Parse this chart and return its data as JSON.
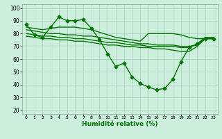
{
  "title": "",
  "xlabel": "Humidité relative (%)",
  "ylabel": "",
  "background_color": "#cceedd",
  "grid_color": "#aaccbb",
  "line_color": "#007700",
  "xlim": [
    -0.5,
    23.5
  ],
  "ylim": [
    17,
    103
  ],
  "yticks": [
    20,
    30,
    40,
    50,
    60,
    70,
    80,
    90,
    100
  ],
  "xticks": [
    0,
    1,
    2,
    3,
    4,
    5,
    6,
    7,
    8,
    9,
    10,
    11,
    12,
    13,
    14,
    15,
    16,
    17,
    18,
    19,
    20,
    21,
    22,
    23
  ],
  "series": [
    {
      "x": [
        0,
        1,
        2,
        3,
        4,
        5,
        6,
        7,
        8,
        9,
        10,
        11,
        12,
        13,
        14,
        15,
        16,
        17,
        18,
        19,
        20,
        21,
        22,
        23
      ],
      "y": [
        87,
        79,
        77,
        85,
        93,
        90,
        90,
        91,
        84,
        75,
        64,
        54,
        57,
        46,
        41,
        38,
        36,
        37,
        44,
        58,
        69,
        72,
        76,
        76
      ],
      "marker": "D",
      "markersize": 2.5,
      "linewidth": 1.0
    },
    {
      "x": [
        0,
        1,
        2,
        3,
        4,
        5,
        6,
        7,
        8,
        9,
        10,
        11,
        12,
        13,
        14,
        15,
        16,
        17,
        18,
        19,
        20,
        21,
        22,
        23
      ],
      "y": [
        85,
        84,
        83,
        84,
        85,
        85,
        85,
        84,
        83,
        81,
        79,
        77,
        76,
        75,
        74,
        80,
        80,
        80,
        80,
        79,
        77,
        76,
        76,
        76
      ],
      "marker": null,
      "markersize": 0,
      "linewidth": 1.0
    },
    {
      "x": [
        0,
        1,
        2,
        3,
        4,
        5,
        6,
        7,
        8,
        9,
        10,
        11,
        12,
        13,
        14,
        15,
        16,
        17,
        18,
        19,
        20,
        21,
        22,
        23
      ],
      "y": [
        83,
        82,
        81,
        80,
        80,
        79,
        79,
        78,
        78,
        77,
        76,
        75,
        74,
        73,
        72,
        72,
        71,
        71,
        71,
        70,
        70,
        71,
        77,
        77
      ],
      "marker": null,
      "markersize": 0,
      "linewidth": 1.0
    },
    {
      "x": [
        0,
        1,
        2,
        3,
        4,
        5,
        6,
        7,
        8,
        9,
        10,
        11,
        12,
        13,
        14,
        15,
        16,
        17,
        18,
        19,
        20,
        21,
        22,
        23
      ],
      "y": [
        80,
        79,
        78,
        78,
        77,
        77,
        76,
        76,
        75,
        74,
        73,
        73,
        72,
        71,
        71,
        70,
        70,
        70,
        70,
        69,
        69,
        72,
        77,
        77
      ],
      "marker": null,
      "markersize": 0,
      "linewidth": 1.0
    },
    {
      "x": [
        0,
        1,
        2,
        3,
        4,
        5,
        6,
        7,
        8,
        9,
        10,
        11,
        12,
        13,
        14,
        15,
        16,
        17,
        18,
        19,
        20,
        21,
        22,
        23
      ],
      "y": [
        78,
        77,
        76,
        76,
        75,
        75,
        74,
        74,
        73,
        72,
        71,
        71,
        70,
        70,
        69,
        69,
        68,
        68,
        67,
        66,
        66,
        70,
        76,
        76
      ],
      "marker": null,
      "markersize": 0,
      "linewidth": 1.0
    }
  ]
}
